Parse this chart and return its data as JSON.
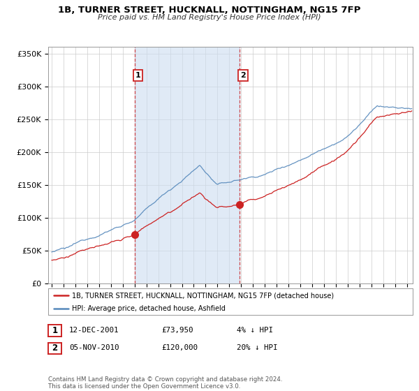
{
  "title": "1B, TURNER STREET, HUCKNALL, NOTTINGHAM, NG15 7FP",
  "subtitle": "Price paid vs. HM Land Registry's House Price Index (HPI)",
  "ylabel_ticks": [
    "£0",
    "£50K",
    "£100K",
    "£150K",
    "£200K",
    "£250K",
    "£300K",
    "£350K"
  ],
  "ytick_values": [
    0,
    50000,
    100000,
    150000,
    200000,
    250000,
    300000,
    350000
  ],
  "ylim": [
    0,
    360000
  ],
  "xlim_start": 1994.7,
  "xlim_end": 2025.5,
  "hpi_color": "#5588bb",
  "price_color": "#cc2222",
  "shade_color": "#ccddf0",
  "sale1_date": 2002.0,
  "sale1_price": 73950,
  "sale2_date": 2010.87,
  "sale2_price": 120000,
  "legend_label_price": "1B, TURNER STREET, HUCKNALL, NOTTINGHAM, NG15 7FP (detached house)",
  "legend_label_hpi": "HPI: Average price, detached house, Ashfield",
  "footnote": "Contains HM Land Registry data © Crown copyright and database right 2024.\nThis data is licensed under the Open Government Licence v3.0.",
  "background_color": "#ffffff",
  "plot_bg_color": "#ffffff"
}
